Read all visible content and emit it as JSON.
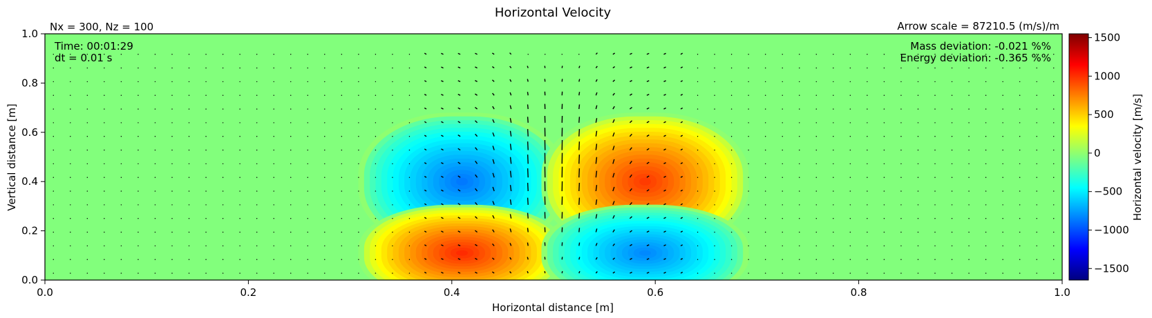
{
  "chart_data": {
    "type": "heatmap",
    "title": "Horizontal Velocity",
    "xlabel": "Horizontal distance [m]",
    "ylabel": "Vertical distance [m]",
    "xlim": [
      0.0,
      1.0
    ],
    "ylim": [
      0.0,
      1.0
    ],
    "x_ticks": [
      "0.0",
      "0.2",
      "0.4",
      "0.6",
      "0.8",
      "1.0"
    ],
    "y_ticks": [
      "0.0",
      "0.2",
      "0.4",
      "0.6",
      "0.8",
      "1.0"
    ],
    "grid": false,
    "colormap": "jet",
    "colorbar": {
      "label": "Horizontal velocity [m/s]",
      "range": [
        -1650,
        1550
      ],
      "ticks": [
        "1500",
        "1000",
        "500",
        "0",
        "−500",
        "−1000",
        "−1500"
      ]
    },
    "grid_size_label": "Nx = 300, Nz = 100",
    "arrow_scale_label": "Arrow scale = 87210.5 (m/s)/m",
    "time_label": "Time: 00:01:29",
    "dt_label": "dt = 0.01 s",
    "mass_deviation_label": "Mass deviation: -0.021 %%",
    "energy_deviation_label": "Energy deviation: -0.365 %%",
    "field": {
      "background": 0,
      "blobs": [
        {
          "x": 0.41,
          "z": 0.4,
          "value": -900
        },
        {
          "x": 0.59,
          "z": 0.4,
          "value": 1000
        },
        {
          "x": 0.41,
          "z": 0.11,
          "value": 1050
        },
        {
          "x": 0.59,
          "z": 0.11,
          "value": -850
        }
      ]
    },
    "quiver": {
      "nx": 60,
      "nz": 17,
      "peak_arrows": [
        {
          "x": 0.49,
          "z": 0.45,
          "direction": "up"
        },
        {
          "x": 0.52,
          "z": 0.45,
          "direction": "up"
        }
      ]
    }
  }
}
